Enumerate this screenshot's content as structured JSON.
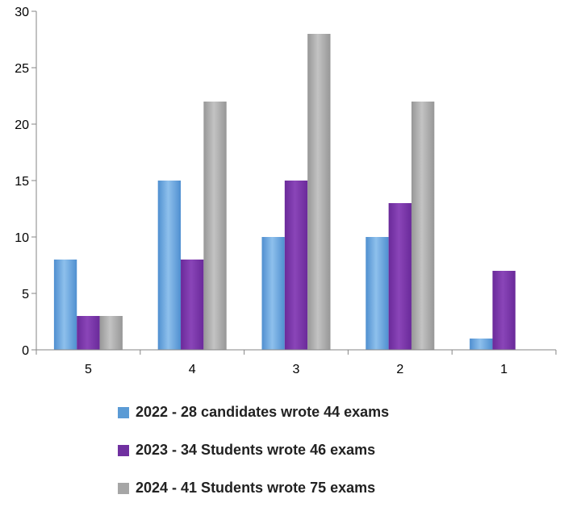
{
  "chart_data": {
    "type": "bar",
    "categories": [
      "5",
      "4",
      "3",
      "2",
      "1"
    ],
    "series": [
      {
        "name": "2022 - 28 candidates wrote 44 exams",
        "values": [
          8,
          15,
          10,
          10,
          1
        ],
        "color": "#5b9bd5"
      },
      {
        "name": "2023 - 34 Students wrote 46 exams",
        "values": [
          3,
          8,
          15,
          13,
          7
        ],
        "color": "#7030a0"
      },
      {
        "name": "2024 - 41 Students wrote 75 exams",
        "values": [
          3,
          22,
          28,
          22,
          0
        ],
        "color": "#a6a6a6"
      }
    ],
    "ylim": [
      0,
      30
    ],
    "yticks": [
      0,
      5,
      10,
      15,
      20,
      25,
      30
    ],
    "ytick_labels": [
      "0",
      "5",
      "10",
      "15",
      "20",
      "25",
      "30"
    ],
    "xlabel": "",
    "ylabel": "",
    "title": "",
    "grid": false,
    "legend_position": "bottom"
  }
}
